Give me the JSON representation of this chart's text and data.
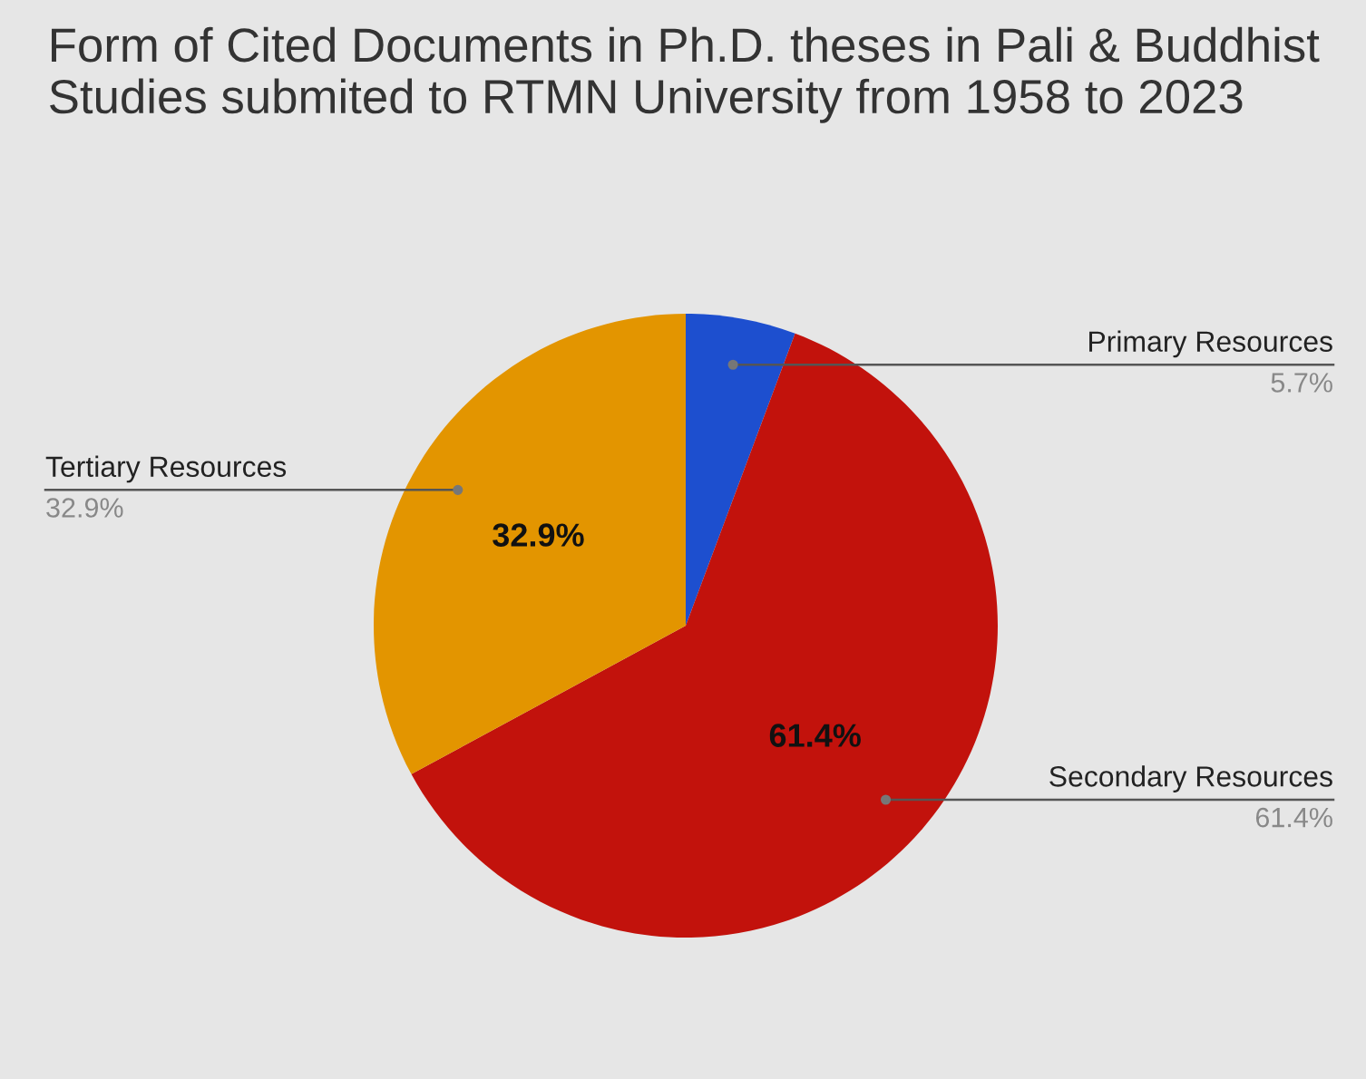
{
  "chart_data": {
    "type": "pie",
    "title": "Form of Cited Documents in Ph.D. theses in Pali & Buddhist Studies submited to RTMN University from 1958 to 2023",
    "categories": [
      "Primary Resources",
      "Secondary Resources",
      "Tertiary Resources"
    ],
    "values": [
      5.7,
      61.4,
      32.9
    ],
    "colors": [
      "#1d4fcf",
      "#c2120c",
      "#e39500"
    ],
    "value_labels": [
      "5.7%",
      "61.4%",
      "32.9%"
    ],
    "annotations": [
      {
        "text": "61.4%",
        "x": "Secondary Resources"
      },
      {
        "text": "32.9%",
        "x": "Tertiary Resources"
      }
    ],
    "legend": false
  }
}
